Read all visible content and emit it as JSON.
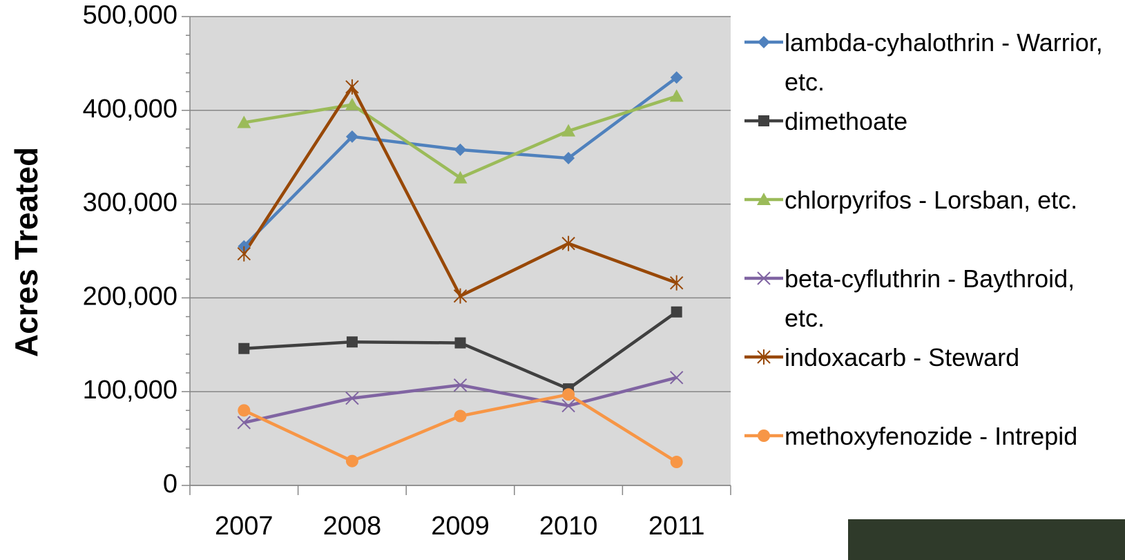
{
  "chart_data": {
    "type": "line",
    "y_label": "Acres Treated",
    "categories": [
      "2007",
      "2008",
      "2009",
      "2010",
      "2011"
    ],
    "ylim": [
      0,
      500000
    ],
    "yticks": [
      0,
      {
        "value": 100000,
        "label": "100,000"
      },
      {
        "value": 200000,
        "label": "200,000"
      },
      {
        "value": 300000,
        "label": "300,000"
      },
      {
        "value": 400000,
        "label": "400,000"
      },
      {
        "value": 500000,
        "label": "500,000"
      }
    ],
    "grid": true,
    "legend": "right",
    "series": [
      {
        "name": "lambda-cyhalothrin - Warrior, etc.",
        "color": "#4f81bd",
        "marker": "diamond",
        "values": [
          255000,
          372000,
          358000,
          349000,
          435000
        ]
      },
      {
        "name": "dimethoate",
        "color": "#404040",
        "marker": "square",
        "values": [
          146000,
          153000,
          152000,
          103000,
          185000
        ]
      },
      {
        "name": "chlorpyrifos - Lorsban, etc.",
        "color": "#9bbb59",
        "marker": "triangle",
        "values": [
          387000,
          406000,
          328000,
          378000,
          415000
        ]
      },
      {
        "name": "beta-cyfluthrin - Baythroid, etc.",
        "color": "#8064a2",
        "marker": "x",
        "values": [
          67000,
          93000,
          107000,
          85000,
          115000
        ]
      },
      {
        "name": "indoxacarb - Steward",
        "color": "#984807",
        "marker": "asterisk",
        "values": [
          247000,
          425000,
          202000,
          258000,
          216000
        ]
      },
      {
        "name": "methoxyfenozide - Intrepid",
        "color": "#f79646",
        "marker": "circle",
        "values": [
          80000,
          26000,
          74000,
          97000,
          25000
        ]
      }
    ]
  }
}
